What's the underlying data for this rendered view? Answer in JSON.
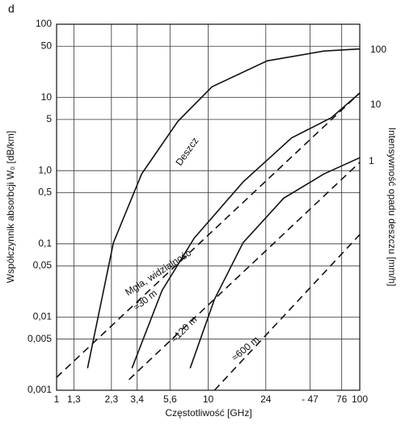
{
  "chart_data": {
    "type": "line",
    "panel_label": "d",
    "x_label": "Częstotliwość [GHz]",
    "y_label": "Współczynnik absorbcji W₀ [dB/km]",
    "y2_label": "Intensywność opadu deszczu [mm/h]",
    "log_x": true,
    "log_y": true,
    "grid": true,
    "xlim": [
      1,
      100
    ],
    "ylim": [
      0.001,
      100
    ],
    "xticks": [
      1,
      {
        "value": 1.3,
        "label": "1,3"
      },
      {
        "value": 2.3,
        "label": "2,3"
      },
      {
        "value": 3.4,
        "label": "3,4"
      },
      {
        "value": 5.6,
        "label": "5,6"
      },
      10,
      24,
      {
        "value": 47,
        "label": "- 47"
      },
      76,
      100
    ],
    "yticks": [
      {
        "value": 0.001,
        "label": "0,001"
      },
      {
        "value": 0.005,
        "label": "0,005"
      },
      {
        "value": 0.01,
        "label": "0,01"
      },
      {
        "value": 0.05,
        "label": "0,05"
      },
      {
        "value": 0.1,
        "label": "0,1"
      },
      {
        "value": 0.5,
        "label": "0,5"
      },
      {
        "value": 1,
        "label": "1,0"
      },
      5,
      10,
      50,
      100
    ],
    "annotations": [
      "Deszcz",
      "Mgła, widzialność"
    ],
    "series": [
      {
        "name": "100",
        "color": "#111",
        "dash": false,
        "x": [
          1.6,
          2.37,
          3.64,
          6.3,
          10.6,
          24.5,
          58,
          100
        ],
        "values": [
          0.002,
          0.104,
          0.9,
          4.7,
          14,
          31.6,
          43,
          46
        ]
      },
      {
        "name": "10",
        "color": "#111",
        "dash": false,
        "x": [
          3.14,
          4.96,
          8.1,
          17,
          35.5,
          65,
          100
        ],
        "values": [
          0.002,
          0.023,
          0.12,
          0.7,
          2.8,
          5.3,
          11.5
        ]
      },
      {
        "name": "1",
        "color": "#111",
        "dash": false,
        "x": [
          7.6,
          11,
          17,
          31.5,
          58,
          100
        ],
        "values": [
          0.002,
          0.0175,
          0.104,
          0.42,
          0.9,
          1.5
        ]
      },
      {
        "name": "≈30 m",
        "color": "#111",
        "dash": true,
        "x": [
          1,
          100
        ],
        "values": [
          0.0015,
          11.5
        ]
      },
      {
        "name": "≈120 m",
        "color": "#111",
        "dash": true,
        "x": [
          3,
          100
        ],
        "values": [
          0.0014,
          1.3
        ]
      },
      {
        "name": "≈600 m",
        "color": "#111",
        "dash": true,
        "x": [
          11,
          100
        ],
        "values": [
          0.001,
          0.134
        ]
      }
    ]
  }
}
